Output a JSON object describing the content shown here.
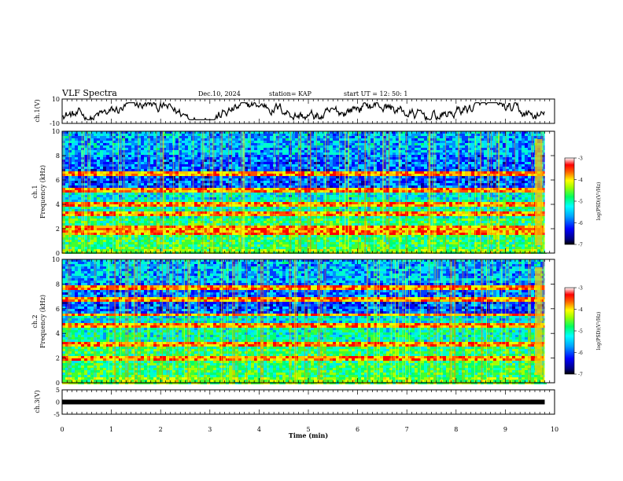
{
  "header": {
    "title": "VLF Spectra",
    "date": "Dec.10, 2024",
    "station": "station= KAP",
    "start_ut": "start  UT =   12: 50: 1"
  },
  "chart_data": [
    {
      "type": "line",
      "panel": "ch1-waveform",
      "ylabel": "ch.1(V)",
      "ylim": [
        -10,
        10
      ],
      "yticks": [
        "10",
        "-10"
      ],
      "xlim": [
        0,
        10
      ],
      "trace_end_min": 9.8,
      "description_of_values": "noisy waveform oscillating roughly between -6 and 6 V"
    },
    {
      "type": "heatmap",
      "panel": "ch1-spectrogram",
      "ylabel": "ch.1\nFrequency (kHz)",
      "ylabel_line1": "ch.1",
      "ylabel_line2": "Frequency (kHz)",
      "ylim": [
        0,
        10
      ],
      "yticks": [
        "0",
        "2",
        "4",
        "6",
        "8",
        "10"
      ],
      "xlim": [
        0,
        10
      ],
      "colorbar": {
        "label": "log(PSD)(V²/Hz)",
        "ticks": [
          "-3",
          "-4",
          "-5",
          "-6",
          "-7"
        ],
        "range": [
          -7,
          -3
        ]
      },
      "bands_khz": [
        5.3,
        6.6,
        2.2,
        3.4,
        4.1,
        1.7
      ],
      "data_end_min": 9.8
    },
    {
      "type": "heatmap",
      "panel": "ch2-spectrogram",
      "ylabel_line1": "ch.2",
      "ylabel_line2": "Frequency (kHz)",
      "ylim": [
        0,
        10
      ],
      "yticks": [
        "0",
        "2",
        "4",
        "6",
        "8",
        "10"
      ],
      "xlim": [
        0,
        10
      ],
      "colorbar": {
        "label": "log(PSD)(V²/Hz)",
        "ticks": [
          "-3",
          "-4",
          "-5",
          "-6",
          "-7"
        ],
        "range": [
          -7,
          -3
        ]
      },
      "bands_khz": [
        4.7,
        2.0,
        6.8,
        3.3,
        5.6,
        7.8
      ],
      "data_end_min": 9.8
    },
    {
      "type": "line",
      "panel": "ch3-waveform",
      "ylabel": "ch.3(V)",
      "ylim": [
        -5,
        5
      ],
      "yticks": [
        "5",
        "0",
        "-5"
      ],
      "xlim": [
        0,
        10
      ],
      "constant_value_v": 0,
      "trace_end_min": 9.8
    }
  ],
  "xaxis": {
    "label": "Time  (min)",
    "ticks": [
      "0",
      "1",
      "2",
      "3",
      "4",
      "5",
      "6",
      "7",
      "8",
      "9",
      "10"
    ]
  },
  "colors": {
    "colormap": [
      "#000080",
      "#0000ff",
      "#0080ff",
      "#00ffff",
      "#00ff80",
      "#80ff00",
      "#ffff00",
      "#ff8000",
      "#ff0000",
      "#ffffff"
    ]
  }
}
